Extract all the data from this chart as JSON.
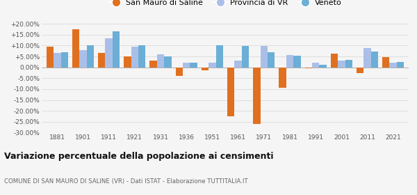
{
  "years": [
    1881,
    1901,
    1911,
    1921,
    1931,
    1936,
    1951,
    1961,
    1971,
    1981,
    1991,
    2001,
    2011,
    2021
  ],
  "san_mauro": [
    9.5,
    17.5,
    6.5,
    5.0,
    3.0,
    -3.8,
    -1.5,
    -22.5,
    -26.0,
    -9.5,
    -0.5,
    6.2,
    -2.5,
    4.8
  ],
  "provincia_vr": [
    6.5,
    8.0,
    13.5,
    9.5,
    6.0,
    2.2,
    2.2,
    3.2,
    9.8,
    5.7,
    2.0,
    3.2,
    8.8,
    2.3
  ],
  "veneto": [
    6.8,
    10.0,
    16.5,
    10.0,
    5.0,
    2.3,
    10.0,
    9.8,
    7.0,
    5.5,
    1.3,
    3.5,
    7.2,
    2.5
  ],
  "color_san_mauro": "#E07020",
  "color_provincia": "#AABFE8",
  "color_veneto": "#6BAED6",
  "title": "Variazione percentuale della popolazione ai censimenti",
  "subtitle": "COMUNE DI SAN MAURO DI SALINE (VR) - Dati ISTAT - Elaborazione TUTTITALIA.IT",
  "legend_labels": [
    "San Mauro di Saline",
    "Provincia di VR",
    "Veneto"
  ],
  "ylim": [
    -30,
    22
  ],
  "yticks": [
    -30,
    -25,
    -20,
    -15,
    -10,
    -5,
    0,
    5,
    10,
    15,
    20
  ],
  "background_color": "#f5f5f5",
  "figsize": [
    6.0,
    2.8
  ],
  "dpi": 100
}
